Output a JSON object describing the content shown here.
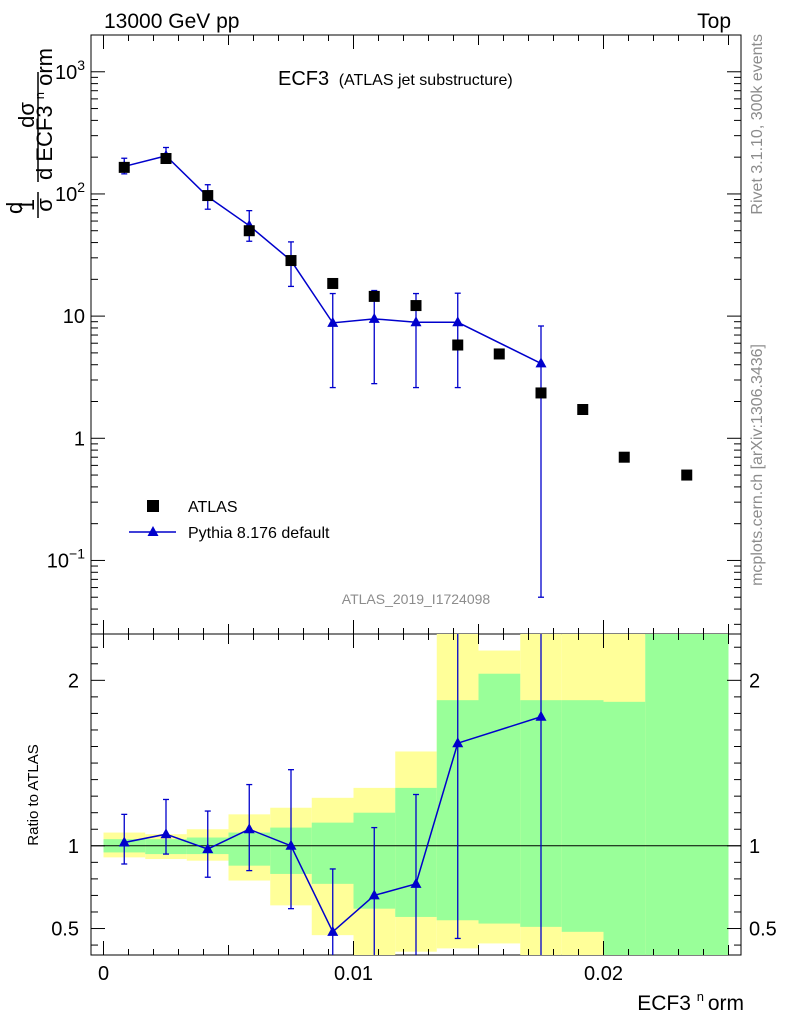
{
  "header": {
    "left": "13000 GeV pp",
    "right": "Top"
  },
  "side_text": {
    "rivet": "Rivet 3.1.10,  300k events",
    "mcplots": "mcplots.cern.ch [arXiv:1306.3436]"
  },
  "chart_data": {
    "type": "scatter",
    "title": "ECF3",
    "subtitle": "(ATLAS jet substructure)",
    "analysis_id": "ATLAS_2019_I1724098",
    "xlabel": "ECF3^norm",
    "xlabel_parts": {
      "main": "ECF3",
      "sup": "n",
      "tail": "orm"
    },
    "ylabel": "1/σ dσ/d ECF3^norm",
    "ylabel_parts": {
      "one": "1",
      "sigma": "σ",
      "d": "d",
      "dsigma": "dσ",
      "dECF": "d ECF3",
      "sup": "n",
      "orm": "orm"
    },
    "xlim": [
      -0.0005,
      0.0255
    ],
    "xticks": [
      0,
      0.01,
      0.02
    ],
    "xtick_labels": [
      "0",
      "0.01",
      "0.02"
    ],
    "upper": {
      "yscale": "log",
      "ylim": [
        0.025,
        2000
      ],
      "ytick_labels": [
        {
          "value": 1000,
          "base": "10",
          "exp": "3"
        },
        {
          "value": 100,
          "base": "10",
          "exp": "2"
        },
        {
          "value": 10,
          "base": "10",
          "exp": ""
        },
        {
          "value": 1,
          "base": "1",
          "exp": ""
        },
        {
          "value": 0.1,
          "base": "10",
          "exp": "−1"
        }
      ]
    },
    "legend": {
      "position": "lower-left",
      "entries": [
        "ATLAS",
        "Pythia 8.176 default"
      ]
    },
    "series": [
      {
        "name": "ATLAS",
        "marker": "square",
        "color": "#000000",
        "x": [
          0.00083,
          0.0025,
          0.00417,
          0.00583,
          0.0075,
          0.00917,
          0.01083,
          0.0125,
          0.01417,
          0.01583,
          0.0175,
          0.01917,
          0.02083,
          0.02333
        ],
        "y": [
          165,
          195,
          97,
          50,
          28.5,
          18.5,
          14.5,
          12.2,
          5.8,
          4.9,
          2.35,
          1.72,
          0.7,
          0.5
        ]
      },
      {
        "name": "Pythia 8.176 default",
        "marker": "triangle",
        "color": "#0000cc",
        "x": [
          0.00083,
          0.0025,
          0.00417,
          0.00583,
          0.0075,
          0.00917,
          0.01083,
          0.0125,
          0.01417,
          0.0175
        ],
        "y": [
          168,
          205,
          95,
          55,
          28.5,
          8.8,
          9.5,
          8.9,
          8.9,
          4.1
        ],
        "yerr_low": [
          22,
          25,
          20,
          14,
          11,
          6.2,
          6.7,
          6.3,
          6.3,
          4.05
        ],
        "yerr_high": [
          28,
          35,
          24,
          18,
          12,
          6.5,
          6.7,
          6.4,
          6.5,
          4.2
        ]
      }
    ],
    "ratio": {
      "ylabel": "Ratio to ATLAS",
      "ylim": [
        0.34,
        2.28
      ],
      "yticks": [
        0.5,
        1,
        2
      ],
      "ytick_labels": [
        "0.5",
        "1",
        "2"
      ],
      "reference": 1,
      "bin_edges": [
        0,
        0.00167,
        0.00333,
        0.005,
        0.00667,
        0.00833,
        0.01,
        0.01167,
        0.01333,
        0.015,
        0.01667,
        0.01833,
        0.02,
        0.02167,
        0.025
      ],
      "band_yellow": {
        "low": [
          0.93,
          0.92,
          0.91,
          0.79,
          0.64,
          0.46,
          0.34,
          0.36,
          0.38,
          0.41,
          0.34,
          0.34,
          0.36,
          0.34
        ],
        "high": [
          1.08,
          1.07,
          1.1,
          1.19,
          1.23,
          1.29,
          1.35,
          1.57,
          2.28,
          2.18,
          2.28,
          2.28,
          2.28,
          2.28
        ]
      },
      "band_green": {
        "low": [
          0.96,
          0.95,
          0.95,
          0.88,
          0.83,
          0.77,
          0.62,
          0.57,
          0.55,
          0.53,
          0.51,
          0.48,
          0.34,
          0.34
        ],
        "high": [
          1.04,
          1.04,
          1.05,
          1.08,
          1.11,
          1.14,
          1.2,
          1.35,
          1.88,
          2.04,
          1.88,
          1.88,
          1.87,
          2.28
        ]
      },
      "pythia": {
        "x": [
          0.00083,
          0.0025,
          0.00417,
          0.00583,
          0.0075,
          0.00917,
          0.01083,
          0.0125,
          0.01417,
          0.0175
        ],
        "y": [
          1.02,
          1.07,
          0.98,
          1.1,
          1.0,
          0.48,
          0.7,
          0.77,
          1.62,
          1.78
        ],
        "err_low": [
          0.13,
          0.12,
          0.17,
          0.25,
          0.38,
          0.48,
          0.7,
          0.77,
          1.18,
          1.78
        ],
        "err_high": [
          0.17,
          0.21,
          0.23,
          0.27,
          0.46,
          0.38,
          0.41,
          0.54,
          0.78,
          0.6
        ]
      }
    }
  }
}
